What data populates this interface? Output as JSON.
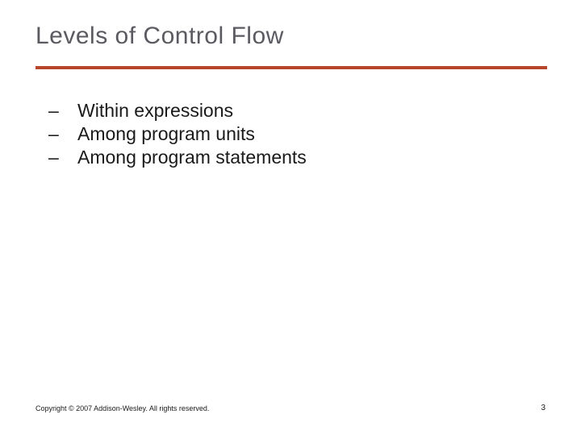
{
  "colors": {
    "title": "#5a5a60",
    "rule": "#b7462a",
    "body_text": "#1a1a1a",
    "footer_text": "#1a1a1a",
    "background": "#ffffff"
  },
  "title": {
    "text": "Levels of Control Flow",
    "fontsize": 30
  },
  "rule": {
    "thickness": 4
  },
  "bullets": {
    "marker": "–",
    "fontsize": 23,
    "items": [
      "Within expressions",
      "Among program units",
      "Among program statements"
    ]
  },
  "footer": {
    "text": "Copyright © 2007 Addison-Wesley. All rights reserved.",
    "fontsize": 9
  },
  "page_number": {
    "text": "3",
    "fontsize": 10
  }
}
